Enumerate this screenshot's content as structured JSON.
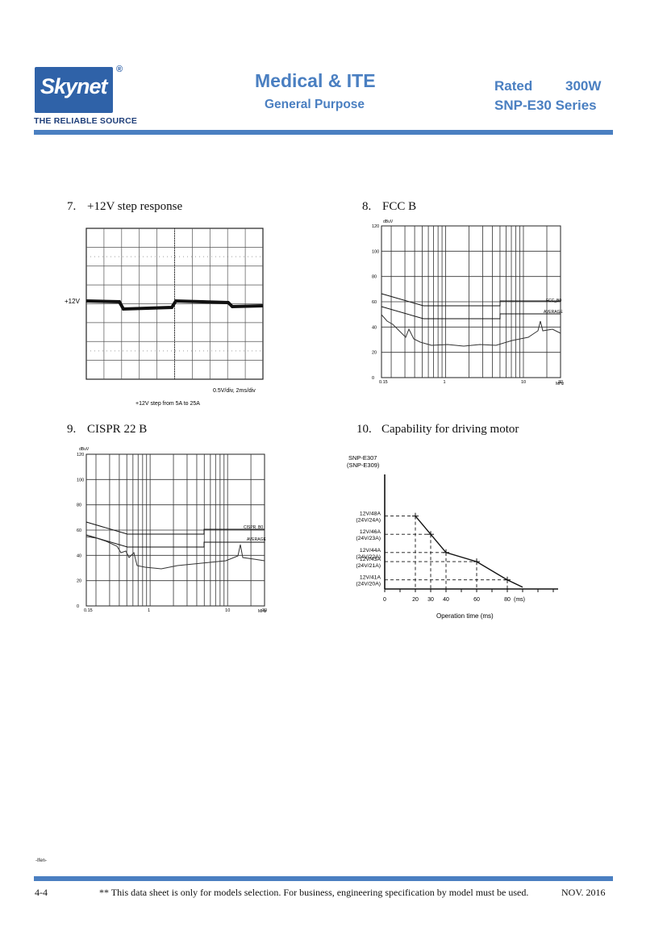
{
  "header": {
    "brand": "Skynet",
    "registered_mark": "®",
    "tagline": "THE RELIABLE SOURCE",
    "title": "Medical & ITE",
    "subtitle": "General Purpose",
    "rated_label": "Rated",
    "rated_value": "300W",
    "series": "SNP-E30 Series"
  },
  "colors": {
    "accent": "#4a7fc1",
    "logo_bg": "#2f62a8"
  },
  "sections": {
    "s7": {
      "number": "7.",
      "title": "+12V step response"
    },
    "s8": {
      "number": "8.",
      "title": "FCC B"
    },
    "s9": {
      "number": "9.",
      "title": "CISPR 22 B"
    },
    "s10": {
      "number": "10.",
      "title": "Capability for driving motor"
    }
  },
  "scope": {
    "channel_label": "+12V",
    "scale_text": "0.5V/div, 2ms/div",
    "caption": "+12V step from 5A to 25A"
  },
  "emi": {
    "unit": "dBuV",
    "y_ticks": [
      "120",
      "100",
      "80",
      "60",
      "40",
      "20",
      "0"
    ],
    "x_ticks": [
      "0.15",
      "1",
      "10",
      "30"
    ],
    "x_unit": "MHz",
    "limit_label": "FCC_B0",
    "cispr_limit_label": "CISPR_B0",
    "average_label": "AVERAGE"
  },
  "chart_data": [
    {
      "type": "line",
      "title": "Capability for driving motor",
      "xlabel": "Operation time (ms)",
      "ylabel_lines": [
        "SNP-E307",
        "(SNP-E309)"
      ],
      "x_ticks": [
        "0",
        "20",
        "30",
        "40",
        "60",
        "80"
      ],
      "x_unit_tick": "(ms)",
      "y_categories": [
        "12V/41A (24V/20A)",
        "12V/43A (24V/21A)",
        "12V/44A (24V/22A)",
        "12V/46A (24V/23A)",
        "12V/48A (24V/24A)"
      ],
      "series": [
        {
          "x": [
            20,
            30,
            40,
            60,
            80,
            90
          ],
          "y": [
            48,
            46,
            44,
            43,
            41,
            40.2
          ]
        }
      ]
    }
  ],
  "footer": {
    "page": "4-4",
    "note": "** This data sheet is only for models selection.  For business, engineering specification by model must be used.",
    "date": "NOV. 2016",
    "mark": "-Ifen-"
  }
}
